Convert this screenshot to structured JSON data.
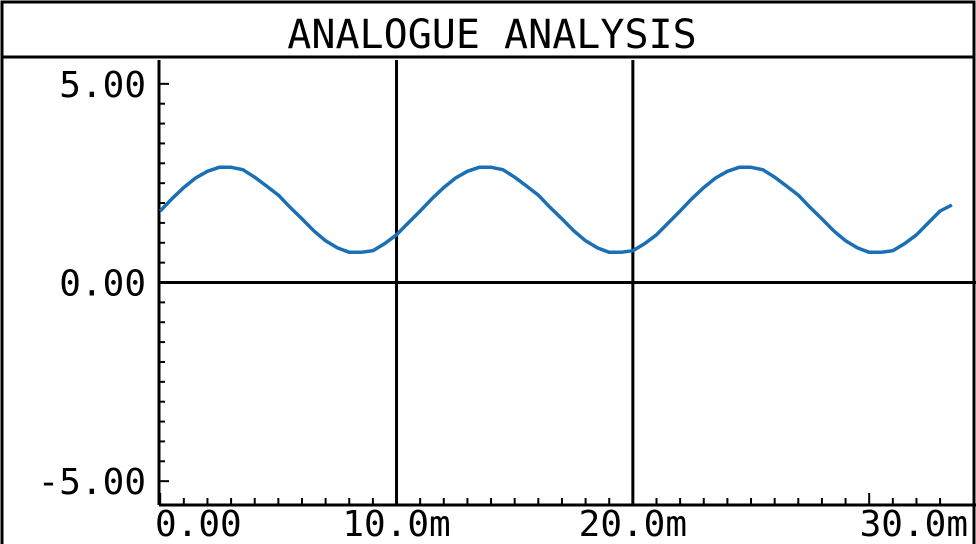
{
  "title": "ANALOGUE ANALYSIS",
  "colors": {
    "background": "#ffffff",
    "axes": "#000000",
    "trace": "#1a6fb5"
  },
  "chart_data": {
    "type": "line",
    "title": "ANALOGUE ANALYSIS",
    "xlabel": "",
    "ylabel": "",
    "xlim": [
      -5e-05,
      0.0338
    ],
    "ylim": [
      -5.6,
      5.6
    ],
    "grid": true,
    "x_gridlines": [
      0.01,
      0.02
    ],
    "y_gridlines": [
      0
    ],
    "y_ticks": [
      {
        "value": 5,
        "label": "5.00"
      },
      {
        "value": 0,
        "label": "0.00"
      },
      {
        "value": -5,
        "label": "-5.00"
      }
    ],
    "x_ticks": [
      {
        "value": 0,
        "label": "0.00"
      },
      {
        "value": 0.01,
        "label": "10.0m"
      },
      {
        "value": 0.02,
        "label": "20.0m"
      },
      {
        "value": 0.03,
        "label": "30.0m"
      }
    ],
    "series": [
      {
        "x": [
          0.0,
          0.0005,
          0.001,
          0.0015,
          0.002,
          0.0025,
          0.003,
          0.0035,
          0.004,
          0.0045,
          0.005,
          0.0055,
          0.006,
          0.0065,
          0.007,
          0.0075,
          0.008,
          0.0085,
          0.009,
          0.0095,
          0.01,
          0.0105,
          0.011,
          0.0115,
          0.012,
          0.0125,
          0.013,
          0.0135,
          0.014,
          0.0145,
          0.015,
          0.0155,
          0.016,
          0.0165,
          0.017,
          0.0175,
          0.018,
          0.0185,
          0.019,
          0.0195,
          0.02,
          0.0205,
          0.021,
          0.0215,
          0.022,
          0.0225,
          0.023,
          0.0235,
          0.024,
          0.0245,
          0.025,
          0.0255,
          0.026,
          0.0265,
          0.027,
          0.0275,
          0.028,
          0.0285,
          0.029,
          0.0295,
          0.03,
          0.0305,
          0.031,
          0.0315,
          0.032,
          0.0325,
          0.033,
          0.0335
        ],
        "y": [
          1.8,
          2.11,
          2.39,
          2.63,
          2.8,
          2.9,
          2.9,
          2.84,
          2.65,
          2.43,
          2.2,
          1.89,
          1.6,
          1.3,
          1.05,
          0.87,
          0.76,
          0.76,
          0.8,
          0.98,
          1.2,
          1.5,
          1.8,
          2.11,
          2.39,
          2.63,
          2.8,
          2.9,
          2.9,
          2.84,
          2.65,
          2.43,
          2.2,
          1.89,
          1.6,
          1.3,
          1.05,
          0.87,
          0.76,
          0.76,
          0.8,
          0.98,
          1.2,
          1.5,
          1.8,
          2.11,
          2.39,
          2.63,
          2.8,
          2.9,
          2.9,
          2.84,
          2.65,
          2.43,
          2.2,
          1.89,
          1.6,
          1.3,
          1.05,
          0.87,
          0.76,
          0.76,
          0.8,
          0.98,
          1.2,
          1.5,
          1.8,
          1.95
        ]
      }
    ]
  }
}
